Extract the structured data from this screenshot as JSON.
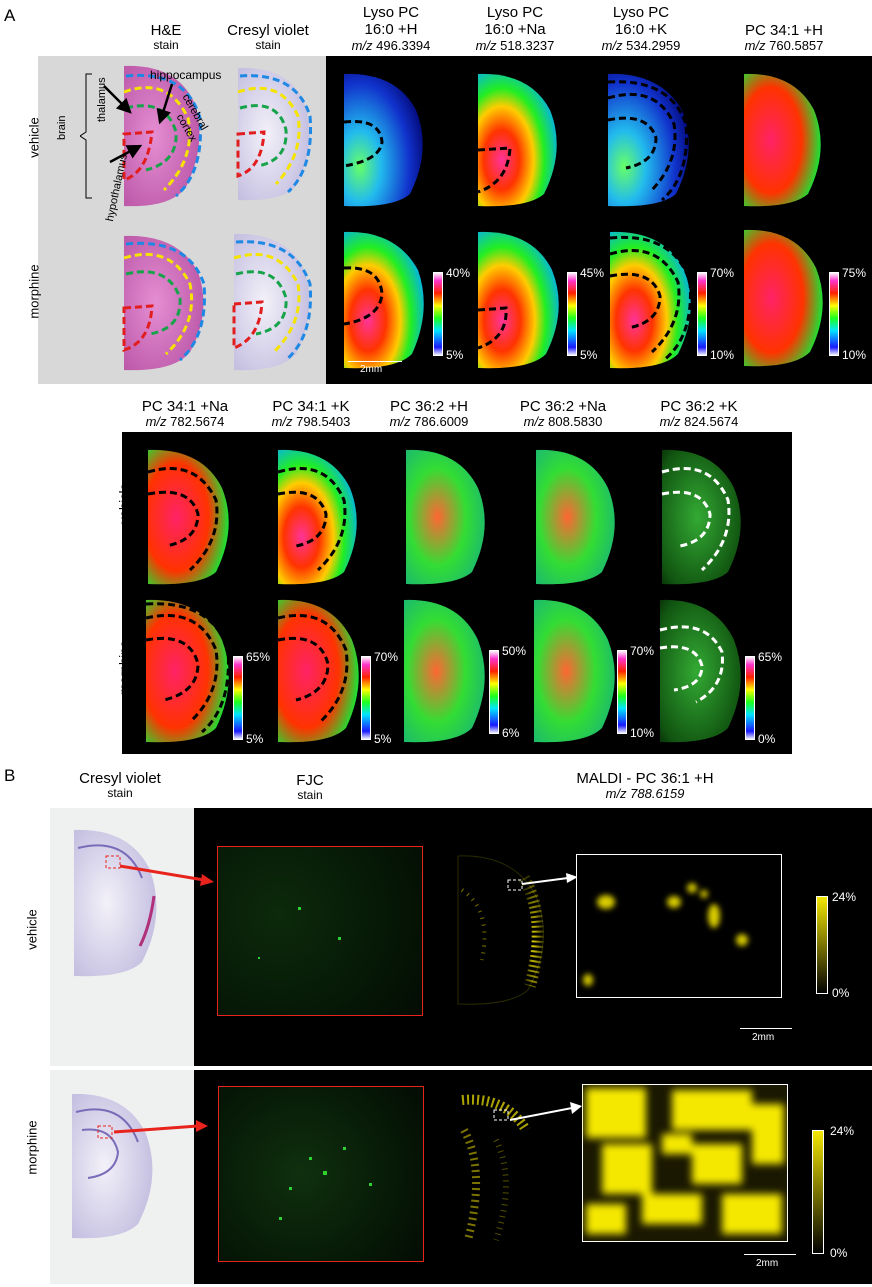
{
  "panel_a": {
    "letter": "A",
    "top_headers": [
      {
        "line1": "H&E",
        "line2": "stain",
        "mz": ""
      },
      {
        "line1": "Cresyl violet",
        "line2": "stain",
        "mz": ""
      },
      {
        "line1": "Lyso PC",
        "line2": "16:0 +H",
        "mz_prefix": "m/z",
        "mz": "496.3394"
      },
      {
        "line1": "Lyso PC",
        "line2": "16:0 +Na",
        "mz_prefix": "m/z",
        "mz": "518.3237"
      },
      {
        "line1": "Lyso PC",
        "line2": "16:0 +K",
        "mz_prefix": "m/z",
        "mz": "534.2959"
      },
      {
        "line1": "PC 34:1 +H",
        "line2": "",
        "mz_prefix": "m/z",
        "mz": "760.5857"
      }
    ],
    "bottom_headers": [
      {
        "line1": "PC 34:1 +Na",
        "mz_prefix": "m/z",
        "mz": "782.5674"
      },
      {
        "line1": "PC 34:1 +K",
        "mz_prefix": "m/z",
        "mz": "798.5403"
      },
      {
        "line1": "PC 36:2 +H",
        "mz_prefix": "m/z",
        "mz": "786.6009"
      },
      {
        "line1": "PC 36:2 +Na",
        "mz_prefix": "m/z",
        "mz": "808.5830"
      },
      {
        "line1": "PC 36:2 +K",
        "mz_prefix": "m/z",
        "mz": "824.5674"
      }
    ],
    "row_labels": {
      "vehicle": "vehicle",
      "morphine": "morphine"
    },
    "anatomy_labels": {
      "brain": "brain",
      "thalamus": "thalamus",
      "hippocampus": "hippocampus",
      "cerebral": "cerebral",
      "cortex": "cortex",
      "hypothalamus": "hypothalamus"
    },
    "scale_bar": "2mm",
    "top_colorbars": [
      {
        "max": "40%",
        "min": "5%"
      },
      {
        "max": "45%",
        "min": "5%"
      },
      {
        "max": "70%",
        "min": "10%"
      },
      {
        "max": "75%",
        "min": "10%"
      }
    ],
    "bottom_colorbars": [
      {
        "max": "65%",
        "min": "5%"
      },
      {
        "max": "70%",
        "min": "5%"
      },
      {
        "max": "50%",
        "min": "6%"
      },
      {
        "max": "70%",
        "min": "10%"
      },
      {
        "max": "65%",
        "min": "0%"
      }
    ]
  },
  "panel_b": {
    "letter": "B",
    "headers": [
      {
        "line1": "Cresyl violet",
        "line2": "stain"
      },
      {
        "line1": "FJC",
        "line2": "stain"
      },
      {
        "line1": "MALDI - PC 36:1 +H",
        "line2": "m/z 788.6159"
      }
    ],
    "row_labels": {
      "vehicle": "vehicle",
      "morphine": "morphine"
    },
    "colorbars": [
      {
        "max": "24%",
        "min": "0%"
      },
      {
        "max": "24%",
        "min": "0%"
      }
    ],
    "scale_bar": "2mm"
  },
  "colors": {
    "black_bg": "#000000",
    "gray_bg": "#d8d8d8",
    "arrow_red": "#e8231c",
    "yellow": "#f5e800",
    "fjc_green": "#2fd12f"
  }
}
